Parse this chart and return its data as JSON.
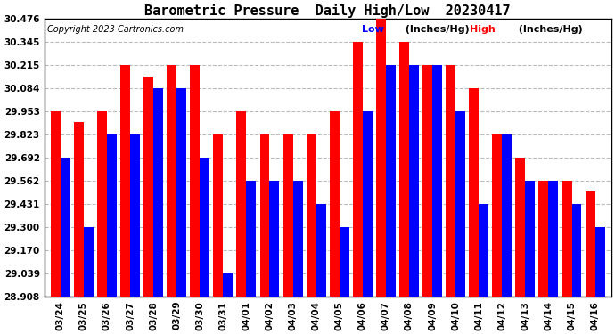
{
  "title": "Barometric Pressure  Daily High/Low  20230417",
  "copyright": "Copyright 2023 Cartronics.com",
  "legend_low_label": "Low",
  "legend_low_unit": "  (Inches/Hg)",
  "legend_high_label": "High",
  "legend_high_unit": "  (Inches/Hg)",
  "dates": [
    "03/24",
    "03/25",
    "03/26",
    "03/27",
    "03/28",
    "03/29",
    "03/30",
    "03/31",
    "04/01",
    "04/02",
    "04/03",
    "04/04",
    "04/05",
    "04/06",
    "04/07",
    "04/08",
    "04/09",
    "04/10",
    "04/11",
    "04/12",
    "04/13",
    "04/14",
    "04/15",
    "04/16"
  ],
  "high_values": [
    29.953,
    29.893,
    29.953,
    30.215,
    30.15,
    30.215,
    30.215,
    29.823,
    29.953,
    29.823,
    29.823,
    29.823,
    29.953,
    30.345,
    30.476,
    30.345,
    30.215,
    30.215,
    30.084,
    29.823,
    29.692,
    29.562,
    29.562,
    29.5
  ],
  "low_values": [
    29.692,
    29.3,
    29.823,
    29.823,
    30.084,
    30.084,
    29.692,
    29.039,
    29.562,
    29.562,
    29.562,
    29.431,
    29.3,
    29.953,
    30.215,
    30.215,
    30.215,
    29.953,
    29.431,
    29.823,
    29.562,
    29.562,
    29.431,
    29.3
  ],
  "bar_color_high": "#ff0000",
  "bar_color_low": "#0000ff",
  "background_color": "#ffffff",
  "grid_color": "#bbbbbb",
  "yticks": [
    28.908,
    29.039,
    29.17,
    29.3,
    29.431,
    29.562,
    29.692,
    29.823,
    29.953,
    30.084,
    30.215,
    30.345,
    30.476
  ],
  "ymin": 28.908,
  "ymax": 30.476,
  "title_fontsize": 11,
  "axis_fontsize": 7.5,
  "copyright_fontsize": 7,
  "legend_fontsize": 8
}
